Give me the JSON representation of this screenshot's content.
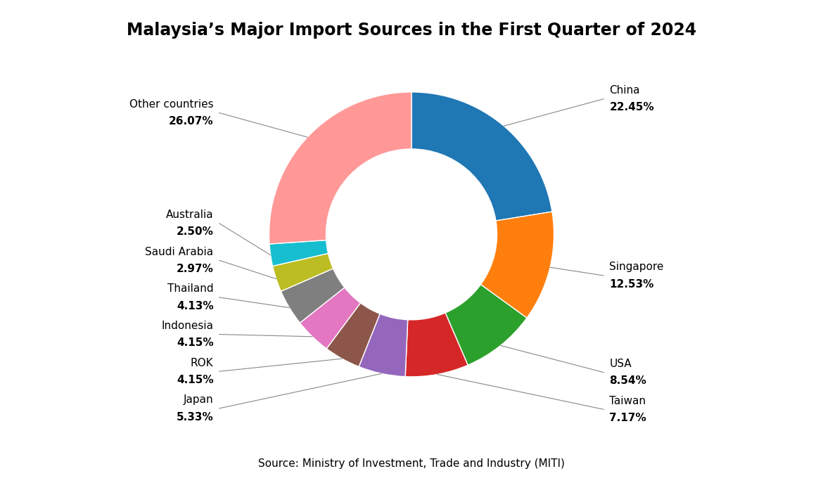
{
  "chart_data": {
    "type": "donut",
    "title": "Malaysia’s Major Import Sources in the First Quarter of 2024",
    "categories": [
      "China",
      "Singapore",
      "USA",
      "Taiwan",
      "Japan",
      "ROK",
      "Indonesia",
      "Thailand",
      "Saudi Arabia",
      "Australia",
      "Other countries"
    ],
    "values": [
      22.45,
      12.53,
      8.54,
      7.17,
      5.33,
      4.15,
      4.15,
      4.13,
      2.97,
      2.5,
      26.07
    ],
    "value_labels": [
      "22.45%",
      "12.53%",
      "8.54%",
      "7.17%",
      "5.33%",
      "4.15%",
      "4.15%",
      "4.13%",
      "2.97%",
      "2.50%",
      "26.07%"
    ],
    "colors": [
      "#1f77b4",
      "#ff7f0e",
      "#2ca02c",
      "#d62728",
      "#9467bd",
      "#8c564b",
      "#e377c2",
      "#7f7f7f",
      "#bcbd22",
      "#17becf",
      "#ff9896"
    ],
    "data_labels": true,
    "annotations": [
      "Source: Ministry of Investment, Trade and Industry (MITI)"
    ]
  }
}
